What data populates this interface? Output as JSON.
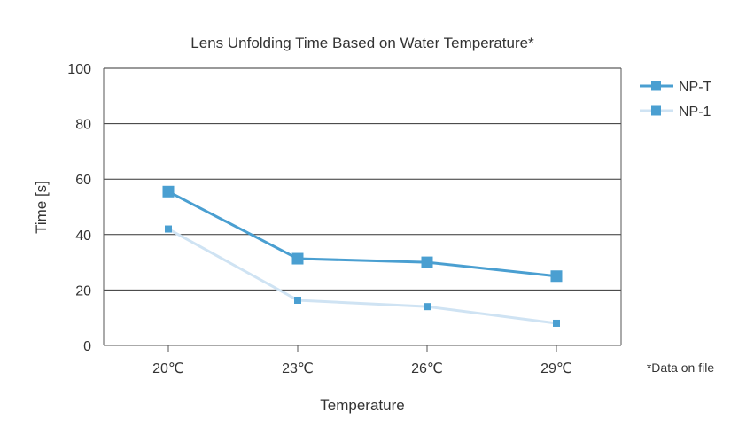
{
  "chart_data": {
    "type": "line",
    "title": "Lens Unfolding Time Based on Water Temperature*",
    "xlabel": "Temperature",
    "ylabel": "Time [s]",
    "categories": [
      "20℃",
      "23℃",
      "26℃",
      "29℃"
    ],
    "ylim": [
      0,
      100
    ],
    "yticks": [
      "0",
      "20",
      "40",
      "60",
      "80",
      "100"
    ],
    "grid": true,
    "legend_position": "right",
    "note": "*Data on file",
    "series": [
      {
        "name": "NP-T",
        "values": [
          55.5,
          31.3,
          30.0,
          25.0
        ],
        "color": "#4a9fd1"
      },
      {
        "name": "NP-1",
        "values": [
          42.0,
          16.3,
          14.0,
          8.0
        ],
        "color": "#cfe3f3",
        "marker_color": "#4a9fd1"
      }
    ]
  }
}
